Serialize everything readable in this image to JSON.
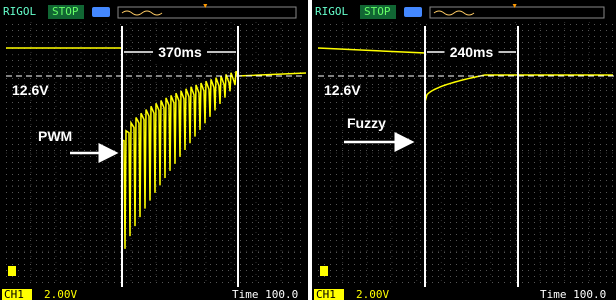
{
  "panels": [
    {
      "brand": "RIGOL",
      "status": "STOP",
      "interval": "370ms",
      "level": "12.6V",
      "method": "PWM",
      "channel": "CH1",
      "scale": "2.00V",
      "time": "Time 100.0"
    },
    {
      "brand": "RIGOL",
      "status": "STOP",
      "interval": "240ms",
      "level": "12.6V",
      "method": "Fuzzy",
      "channel": "CH1",
      "scale": "2.00V",
      "time": "Time 100.0"
    }
  ]
}
